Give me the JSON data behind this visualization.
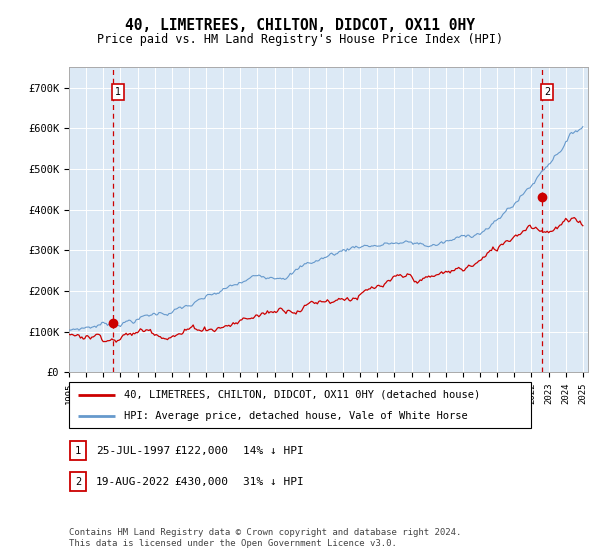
{
  "title": "40, LIMETREES, CHILTON, DIDCOT, OX11 0HY",
  "subtitle": "Price paid vs. HM Land Registry's House Price Index (HPI)",
  "plot_bg_color": "#dce9f5",
  "red_color": "#cc0000",
  "blue_color": "#6699cc",
  "ylim": [
    0,
    750000
  ],
  "yticks": [
    0,
    100000,
    200000,
    300000,
    400000,
    500000,
    600000,
    700000
  ],
  "ytick_labels": [
    "£0",
    "£100K",
    "£200K",
    "£300K",
    "£400K",
    "£500K",
    "£600K",
    "£700K"
  ],
  "legend_line1": "40, LIMETREES, CHILTON, DIDCOT, OX11 0HY (detached house)",
  "legend_line2": "HPI: Average price, detached house, Vale of White Horse",
  "ann1_label": "25-JUL-1997",
  "ann1_price": "£122,000",
  "ann1_pct": "14% ↓ HPI",
  "ann2_label": "19-AUG-2022",
  "ann2_price": "£430,000",
  "ann2_pct": "31% ↓ HPI",
  "footer": "Contains HM Land Registry data © Crown copyright and database right 2024.\nThis data is licensed under the Open Government Licence v3.0.",
  "yr1": 1997.56,
  "yr2": 2022.63,
  "val1": 122000,
  "val2": 430000
}
